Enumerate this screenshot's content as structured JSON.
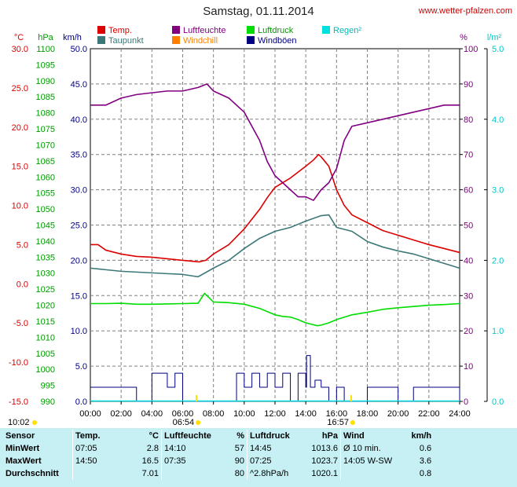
{
  "header": {
    "title": "Samstag, 01.11.2014",
    "site": "www.wetter-pfalzen.com"
  },
  "legend": [
    {
      "label": "Temp.",
      "color": "#dd0000"
    },
    {
      "label": "Luftfeuchte",
      "color": "#800080"
    },
    {
      "label": "Luftdruck",
      "color": "#00dd00"
    },
    {
      "label": "Regen²",
      "color": "#00e0e0"
    },
    {
      "label": "Taupunkt",
      "color": "#3c7878"
    },
    {
      "label": "Windchill",
      "color": "#ff8000"
    },
    {
      "label": "Windböen",
      "color": "#000080"
    }
  ],
  "axes": {
    "temp_unit": "°C",
    "pressure_unit": "hPa",
    "wind_unit": "km/h",
    "humidity_unit": "%",
    "rain_unit": "l/m²",
    "temp_ticks": [
      "30.0",
      "25.0",
      "20.0",
      "15.0",
      "10.0",
      "5.0",
      "0.0",
      "-5.0",
      "-10.0",
      "-15.0"
    ],
    "pressure_ticks": [
      "1100",
      "1095",
      "1090",
      "1085",
      "1080",
      "1075",
      "1070",
      "1065",
      "1060",
      "1055",
      "1050",
      "1045",
      "1040",
      "1035",
      "1030",
      "1025",
      "1020",
      "1015",
      "1010",
      "1005",
      "1000",
      "995",
      "990"
    ],
    "wind_ticks": [
      "50.0",
      "45.0",
      "40.0",
      "35.0",
      "30.0",
      "25.0",
      "20.0",
      "15.0",
      "10.0",
      "5.0",
      "0.0"
    ],
    "humidity_ticks": [
      "100",
      "90",
      "80",
      "70",
      "60",
      "50",
      "40",
      "30",
      "20",
      "10",
      "0"
    ],
    "rain_ticks": [
      "5.0",
      "4.0",
      "3.0",
      "2.0",
      "1.0",
      "0.0"
    ],
    "time_ticks": [
      "00:00",
      "02:00",
      "04:00",
      "06:00",
      "08:00",
      "10:00",
      "12:00",
      "14:00",
      "16:00",
      "18:00",
      "20:00",
      "22:00",
      "24:00"
    ],
    "moon_rise": "10:02",
    "sunrise": "06:54",
    "sunset": "16:57"
  },
  "colors": {
    "temp": "#dd0000",
    "dew": "#3c7878",
    "humidity": "#800080",
    "pressure": "#00dd00",
    "wind": "#000080",
    "rain": "#00e0e0",
    "grid": "#808080"
  },
  "chart_data": {
    "type": "line",
    "title": "Samstag, 01.11.2014",
    "x_unit": "hour",
    "xlim": [
      0,
      24
    ],
    "series": [
      {
        "name": "Temp.",
        "axis": "temp",
        "x": [
          0,
          0.5,
          1,
          2,
          3,
          4,
          5,
          6,
          7.08,
          7.5,
          8,
          9,
          10,
          11,
          11.5,
          12,
          13,
          14,
          14.5,
          14.83,
          15,
          15.5,
          16,
          16.5,
          17,
          18,
          19,
          20,
          21,
          22,
          23,
          24
        ],
        "y": [
          5.0,
          5.0,
          4.3,
          3.8,
          3.5,
          3.4,
          3.2,
          3.0,
          2.8,
          3.0,
          3.8,
          5.0,
          7.0,
          9.5,
          11.0,
          12.3,
          13.5,
          15.0,
          15.8,
          16.5,
          16.2,
          15.0,
          12.0,
          10.0,
          8.8,
          7.8,
          6.8,
          6.2,
          5.6,
          5.0,
          4.5,
          4.0
        ]
      },
      {
        "name": "Taupunkt",
        "axis": "temp",
        "x": [
          0,
          1,
          2,
          3,
          4,
          5,
          6,
          7,
          8,
          9,
          10,
          11,
          12,
          13,
          14,
          15,
          15.5,
          16,
          17,
          18,
          19,
          20,
          21,
          22,
          23,
          24
        ],
        "y": [
          2.0,
          1.8,
          1.6,
          1.5,
          1.4,
          1.3,
          1.2,
          0.9,
          2.0,
          3.0,
          4.5,
          5.8,
          6.7,
          7.2,
          8.0,
          8.7,
          8.8,
          7.2,
          6.7,
          5.4,
          4.7,
          4.2,
          3.8,
          3.2,
          2.6,
          2.0
        ]
      },
      {
        "name": "Luftfeuchte",
        "axis": "humidity",
        "x": [
          0,
          1,
          1.5,
          2,
          3,
          4,
          5,
          6,
          7,
          7.58,
          8,
          9,
          10,
          11,
          11.5,
          12,
          12.5,
          13,
          13.5,
          14,
          14.5,
          15,
          15.5,
          16,
          16.5,
          17,
          18,
          19,
          20,
          21,
          22,
          23,
          24
        ],
        "y": [
          84,
          84,
          85,
          86,
          87,
          87.5,
          88,
          88,
          89,
          90,
          88,
          86,
          82,
          74,
          68,
          64,
          62,
          60,
          58,
          58,
          57,
          60,
          62,
          66,
          74,
          78,
          79,
          80,
          81,
          82,
          83,
          84,
          84
        ]
      },
      {
        "name": "Luftdruck",
        "axis": "pressure",
        "x": [
          0,
          1,
          2,
          3,
          4,
          5,
          6,
          7,
          7.42,
          8,
          9,
          10,
          11,
          12,
          12.5,
          13,
          13.5,
          14,
          14.75,
          15,
          15.5,
          16,
          17,
          18,
          19,
          20,
          21,
          22,
          23,
          24
        ],
        "y": [
          1020.5,
          1020.5,
          1020.6,
          1020.3,
          1020.3,
          1020.4,
          1020.5,
          1020.6,
          1023.7,
          1021.0,
          1020.8,
          1020.3,
          1019.0,
          1017.0,
          1016.5,
          1016.3,
          1015.5,
          1014.5,
          1013.6,
          1013.8,
          1014.5,
          1015.5,
          1017.0,
          1017.8,
          1018.7,
          1019.2,
          1019.6,
          1020.0,
          1020.2,
          1020.5
        ]
      },
      {
        "name": "Windböen",
        "axis": "wind",
        "x": [
          0,
          1,
          2,
          3,
          4,
          5,
          5.5,
          6,
          7,
          8,
          9,
          9.5,
          10,
          10.5,
          11,
          11.5,
          12,
          12.5,
          13,
          13.5,
          14,
          14.05,
          14.3,
          14.6,
          15,
          15.5,
          16,
          16.5,
          17,
          18,
          19,
          20,
          21,
          22,
          23,
          24
        ],
        "y": [
          2,
          2,
          2,
          0,
          4,
          2,
          4,
          0,
          0,
          0,
          0,
          4,
          2,
          4,
          2,
          4,
          2,
          4,
          0,
          4,
          2,
          6.5,
          2,
          3,
          2,
          0,
          2,
          0,
          0,
          2,
          2,
          0,
          2,
          2,
          2,
          0
        ]
      }
    ],
    "axes": {
      "temp": {
        "label": "°C",
        "ylim": [
          -15,
          30
        ]
      },
      "pressure": {
        "label": "hPa",
        "ylim": [
          990,
          1100
        ]
      },
      "wind": {
        "label": "km/h",
        "ylim": [
          0,
          50
        ]
      },
      "humidity": {
        "label": "%",
        "ylim": [
          0,
          100
        ]
      },
      "rain": {
        "label": "l/m²",
        "ylim": [
          0,
          5
        ]
      }
    },
    "grid": true
  },
  "stats": {
    "headers": [
      "Sensor",
      "Temp.",
      "°C",
      "Luftfeuchte",
      "%",
      "Luftdruck",
      "hPa",
      "Wind",
      "km/h"
    ],
    "rows": [
      [
        "MinWert",
        "07:05",
        "2.8",
        "14:10",
        "57",
        "14:45",
        "1013.6",
        "Ø 10 min.",
        "0.6"
      ],
      [
        "MaxWert",
        "14:50",
        "16.5",
        "07:35",
        "90",
        "07:25",
        "1023.7",
        "14:05 W-SW",
        "3.6"
      ],
      [
        "Durchschnitt",
        "",
        "7.01",
        "",
        "80",
        "^2.8hPa/h",
        "1020.1",
        "",
        "0.8"
      ]
    ]
  }
}
